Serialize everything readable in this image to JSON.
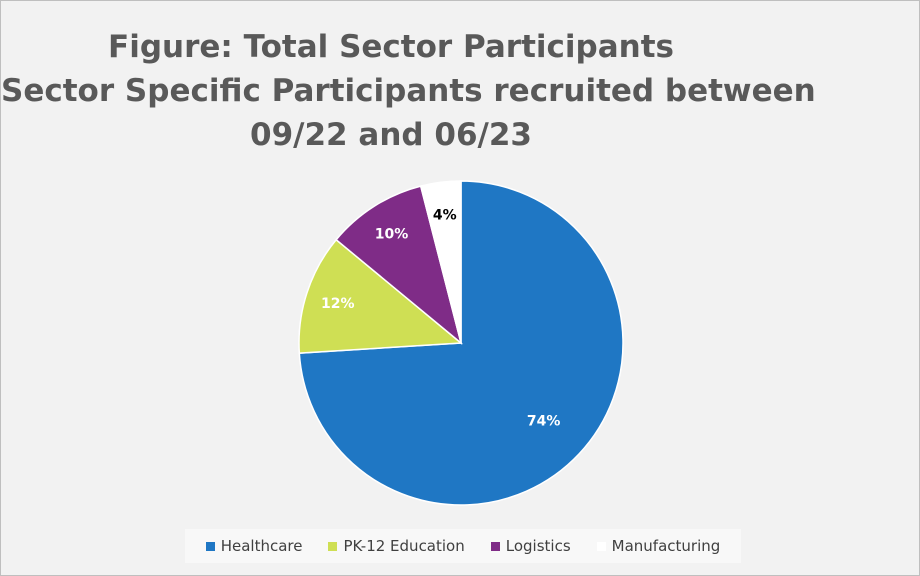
{
  "chart_data": {
    "type": "pie",
    "title_lines": [
      "Figure: Total Sector Participants",
      "Sector Specific Participants recruited between",
      "09/22 and 06/23"
    ],
    "slices": [
      {
        "name": "Healthcare",
        "value": 74,
        "label": "74%",
        "color": "#1f77c4",
        "label_color": "#ffffff"
      },
      {
        "name": "PK-12 Education",
        "value": 12,
        "label": "12%",
        "color": "#cfdf54",
        "label_color": "#ffffff"
      },
      {
        "name": "Logistics",
        "value": 10,
        "label": "10%",
        "color": "#7f2c87",
        "label_color": "#ffffff"
      },
      {
        "name": "Manufacturing",
        "value": 4,
        "label": "4%",
        "color": "#ffffff",
        "label_color": "#000000"
      }
    ],
    "start_angle": "12 o'clock",
    "direction": "clockwise",
    "legend_position": "bottom"
  }
}
